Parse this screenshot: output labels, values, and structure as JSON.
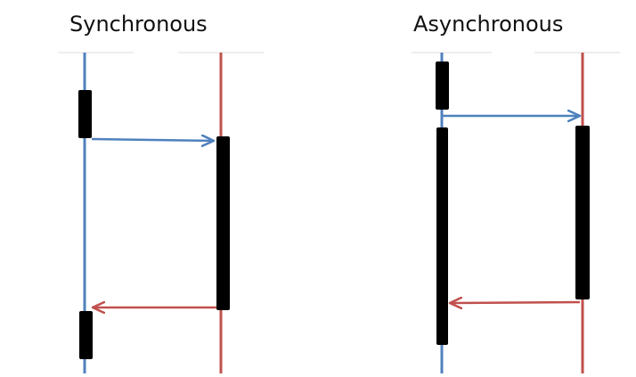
{
  "diagrams": {
    "sync": {
      "title": "Synchronous"
    },
    "async": {
      "title": "Asynchronous"
    }
  },
  "colors": {
    "caller_lifeline": "#4F81BD",
    "callee_lifeline": "#C0504D",
    "request_arrow": "#4F81BD",
    "response_arrow": "#C0504D",
    "activation": "#000000",
    "header_rule": "#EEEEEE"
  }
}
